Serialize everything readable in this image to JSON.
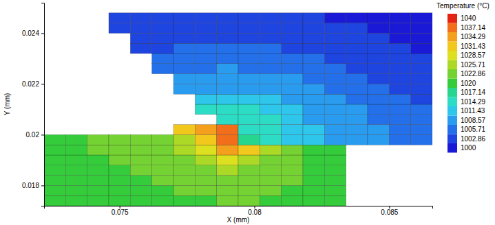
{
  "chart_data": {
    "type": "heatmap",
    "x_label": "X (mm)",
    "y_label": "Y (mm)",
    "xlim": [
      0.0722,
      0.0866
    ],
    "ylim": [
      0.0172,
      0.0252
    ],
    "xticks": [
      0.075,
      0.08,
      0.085
    ],
    "yticks": [
      0.018,
      0.02,
      0.022,
      0.024
    ],
    "x_edges": [
      0.0722,
      0.073,
      0.0738,
      0.0746,
      0.0754,
      0.0762,
      0.077,
      0.0778,
      0.0786,
      0.0794,
      0.0802,
      0.081,
      0.0818,
      0.0826,
      0.0834,
      0.0842,
      0.085,
      0.0858,
      0.0866
    ],
    "y_edges": [
      0.0172,
      0.0176,
      0.018,
      0.0184,
      0.0188,
      0.0192,
      0.0196,
      0.02,
      0.0204,
      0.0208,
      0.0212,
      0.0216,
      0.022,
      0.0224,
      0.0228,
      0.0232,
      0.0236,
      0.024,
      0.0244,
      0.0248
    ],
    "cells": [
      [
        1019,
        1019,
        1020,
        1020,
        1020,
        1021,
        1021,
        1021,
        1022,
        1022,
        1021,
        1021,
        1020,
        1020,
        null,
        null,
        null,
        null
      ],
      [
        1019,
        1020,
        1020,
        1020,
        1021,
        1021,
        1022,
        1022,
        1022,
        1022,
        1022,
        1021,
        1021,
        1020,
        null,
        null,
        null,
        null
      ],
      [
        1020,
        1020,
        1020,
        1021,
        1021,
        1022,
        1022,
        1023,
        1023,
        1023,
        1022,
        1022,
        1021,
        1020,
        null,
        null,
        null,
        null
      ],
      [
        1020,
        1020,
        1021,
        1021,
        1022,
        1022,
        1023,
        1024,
        1025,
        1024,
        1023,
        1022,
        1021,
        1020,
        null,
        null,
        null,
        null
      ],
      [
        1020,
        1021,
        1021,
        1022,
        1022,
        1023,
        1024,
        1026,
        1028,
        1027,
        1024,
        1022,
        1021,
        1020,
        null,
        null,
        null,
        null
      ],
      [
        1021,
        1021,
        1022,
        1022,
        1023,
        1024,
        1026,
        1029,
        1034,
        1031,
        1025,
        1022,
        1021,
        1019,
        null,
        null,
        null,
        null
      ],
      [
        1021,
        1021,
        1022,
        1022,
        1023,
        1024,
        1027,
        1031,
        1037,
        1016,
        1014,
        1012,
        1011,
        1010,
        1009,
        1008,
        1007,
        1007
      ],
      [
        null,
        null,
        null,
        null,
        null,
        null,
        1032,
        1035,
        1038,
        1015,
        1014,
        1012,
        1011,
        1010,
        1009,
        1008,
        1007,
        1006
      ],
      [
        null,
        null,
        null,
        null,
        null,
        null,
        null,
        null,
        1015,
        1014,
        1013,
        1012,
        1010,
        1009,
        1008,
        1007,
        1006,
        1005
      ],
      [
        null,
        null,
        null,
        null,
        null,
        null,
        null,
        1013,
        1013,
        1013,
        1012,
        1011,
        1010,
        1009,
        1008,
        1007,
        1006,
        1005
      ],
      [
        null,
        null,
        null,
        null,
        null,
        null,
        null,
        1011,
        1012,
        1012,
        1011,
        1010,
        1009,
        1008,
        1007,
        1006,
        1005,
        1004
      ],
      [
        null,
        null,
        null,
        null,
        null,
        null,
        1009,
        1010,
        1010,
        1010,
        1009,
        1009,
        1008,
        1007,
        1006,
        1005,
        1004,
        1003
      ],
      [
        null,
        null,
        null,
        null,
        null,
        null,
        1008,
        1009,
        1009,
        1009,
        1008,
        1008,
        1007,
        1006,
        1005,
        1004,
        1004,
        1003
      ],
      [
        null,
        null,
        null,
        null,
        null,
        1006,
        1007,
        1007,
        1008,
        1007,
        1007,
        1007,
        1006,
        1005,
        1004,
        1003,
        1003,
        1002
      ],
      [
        null,
        null,
        null,
        null,
        null,
        1005,
        1006,
        1006,
        1006,
        1006,
        1006,
        1005,
        1005,
        1004,
        1004,
        1003,
        1002,
        1002
      ],
      [
        null,
        null,
        null,
        null,
        1004,
        1004,
        1005,
        1005,
        1005,
        1005,
        1005,
        1004,
        1004,
        1003,
        1003,
        1002,
        1002,
        1001
      ],
      [
        null,
        null,
        null,
        null,
        1003,
        1004,
        1004,
        1004,
        1004,
        1004,
        1004,
        1004,
        1003,
        1003,
        1002,
        1002,
        1001,
        1001
      ],
      [
        null,
        null,
        null,
        1002,
        1003,
        1003,
        1003,
        1003,
        1003,
        1003,
        1003,
        1003,
        1002,
        1002,
        1002,
        1001,
        1001,
        1000
      ],
      [
        null,
        null,
        null,
        1002,
        1002,
        1002,
        1002,
        1002,
        1002,
        1002,
        1002,
        1002,
        1002,
        1001,
        1001,
        1001,
        1000,
        1000
      ]
    ],
    "colorbar": {
      "title": "Temperature (°C)",
      "range": [
        1000,
        1040
      ],
      "ticks": [
        1000,
        1002.86,
        1005.71,
        1008.57,
        1011.43,
        1014.29,
        1017.14,
        1020,
        1022.86,
        1025.71,
        1028.57,
        1031.43,
        1034.29,
        1037.14,
        1040
      ],
      "colors": [
        "#1a1ad6",
        "#1f45e0",
        "#2470ea",
        "#2a9cf0",
        "#2fc6ec",
        "#2cdcc4",
        "#26d68e",
        "#34cc3a",
        "#74d232",
        "#acd826",
        "#dce01e",
        "#f2c81c",
        "#f4a01c",
        "#f26e1a",
        "#e42412"
      ]
    }
  }
}
